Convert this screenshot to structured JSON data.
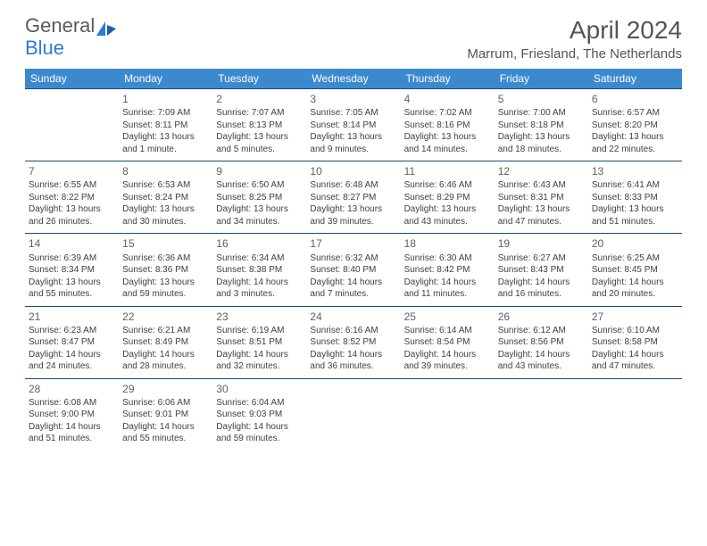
{
  "brand": {
    "text1": "General",
    "text2": "Blue"
  },
  "title": "April 2024",
  "location": "Marrum, Friesland, The Netherlands",
  "colors": {
    "header_bg": "#3b8ad0",
    "header_text": "#ffffff",
    "rule": "#1a4a75",
    "body_text": "#404040",
    "daynum": "#606060",
    "brand_gray": "#5a5a5a",
    "brand_blue": "#2e7cd6"
  },
  "weekdays": [
    "Sunday",
    "Monday",
    "Tuesday",
    "Wednesday",
    "Thursday",
    "Friday",
    "Saturday"
  ],
  "weeks": [
    [
      null,
      {
        "n": "1",
        "sr": "7:09 AM",
        "ss": "8:11 PM",
        "dl": "13 hours and 1 minute."
      },
      {
        "n": "2",
        "sr": "7:07 AM",
        "ss": "8:13 PM",
        "dl": "13 hours and 5 minutes."
      },
      {
        "n": "3",
        "sr": "7:05 AM",
        "ss": "8:14 PM",
        "dl": "13 hours and 9 minutes."
      },
      {
        "n": "4",
        "sr": "7:02 AM",
        "ss": "8:16 PM",
        "dl": "13 hours and 14 minutes."
      },
      {
        "n": "5",
        "sr": "7:00 AM",
        "ss": "8:18 PM",
        "dl": "13 hours and 18 minutes."
      },
      {
        "n": "6",
        "sr": "6:57 AM",
        "ss": "8:20 PM",
        "dl": "13 hours and 22 minutes."
      }
    ],
    [
      {
        "n": "7",
        "sr": "6:55 AM",
        "ss": "8:22 PM",
        "dl": "13 hours and 26 minutes."
      },
      {
        "n": "8",
        "sr": "6:53 AM",
        "ss": "8:24 PM",
        "dl": "13 hours and 30 minutes."
      },
      {
        "n": "9",
        "sr": "6:50 AM",
        "ss": "8:25 PM",
        "dl": "13 hours and 34 minutes."
      },
      {
        "n": "10",
        "sr": "6:48 AM",
        "ss": "8:27 PM",
        "dl": "13 hours and 39 minutes."
      },
      {
        "n": "11",
        "sr": "6:46 AM",
        "ss": "8:29 PM",
        "dl": "13 hours and 43 minutes."
      },
      {
        "n": "12",
        "sr": "6:43 AM",
        "ss": "8:31 PM",
        "dl": "13 hours and 47 minutes."
      },
      {
        "n": "13",
        "sr": "6:41 AM",
        "ss": "8:33 PM",
        "dl": "13 hours and 51 minutes."
      }
    ],
    [
      {
        "n": "14",
        "sr": "6:39 AM",
        "ss": "8:34 PM",
        "dl": "13 hours and 55 minutes."
      },
      {
        "n": "15",
        "sr": "6:36 AM",
        "ss": "8:36 PM",
        "dl": "13 hours and 59 minutes."
      },
      {
        "n": "16",
        "sr": "6:34 AM",
        "ss": "8:38 PM",
        "dl": "14 hours and 3 minutes."
      },
      {
        "n": "17",
        "sr": "6:32 AM",
        "ss": "8:40 PM",
        "dl": "14 hours and 7 minutes."
      },
      {
        "n": "18",
        "sr": "6:30 AM",
        "ss": "8:42 PM",
        "dl": "14 hours and 11 minutes."
      },
      {
        "n": "19",
        "sr": "6:27 AM",
        "ss": "8:43 PM",
        "dl": "14 hours and 16 minutes."
      },
      {
        "n": "20",
        "sr": "6:25 AM",
        "ss": "8:45 PM",
        "dl": "14 hours and 20 minutes."
      }
    ],
    [
      {
        "n": "21",
        "sr": "6:23 AM",
        "ss": "8:47 PM",
        "dl": "14 hours and 24 minutes."
      },
      {
        "n": "22",
        "sr": "6:21 AM",
        "ss": "8:49 PM",
        "dl": "14 hours and 28 minutes."
      },
      {
        "n": "23",
        "sr": "6:19 AM",
        "ss": "8:51 PM",
        "dl": "14 hours and 32 minutes."
      },
      {
        "n": "24",
        "sr": "6:16 AM",
        "ss": "8:52 PM",
        "dl": "14 hours and 36 minutes."
      },
      {
        "n": "25",
        "sr": "6:14 AM",
        "ss": "8:54 PM",
        "dl": "14 hours and 39 minutes."
      },
      {
        "n": "26",
        "sr": "6:12 AM",
        "ss": "8:56 PM",
        "dl": "14 hours and 43 minutes."
      },
      {
        "n": "27",
        "sr": "6:10 AM",
        "ss": "8:58 PM",
        "dl": "14 hours and 47 minutes."
      }
    ],
    [
      {
        "n": "28",
        "sr": "6:08 AM",
        "ss": "9:00 PM",
        "dl": "14 hours and 51 minutes."
      },
      {
        "n": "29",
        "sr": "6:06 AM",
        "ss": "9:01 PM",
        "dl": "14 hours and 55 minutes."
      },
      {
        "n": "30",
        "sr": "6:04 AM",
        "ss": "9:03 PM",
        "dl": "14 hours and 59 minutes."
      },
      null,
      null,
      null,
      null
    ]
  ],
  "labels": {
    "sunrise": "Sunrise:",
    "sunset": "Sunset:",
    "daylight": "Daylight:"
  }
}
